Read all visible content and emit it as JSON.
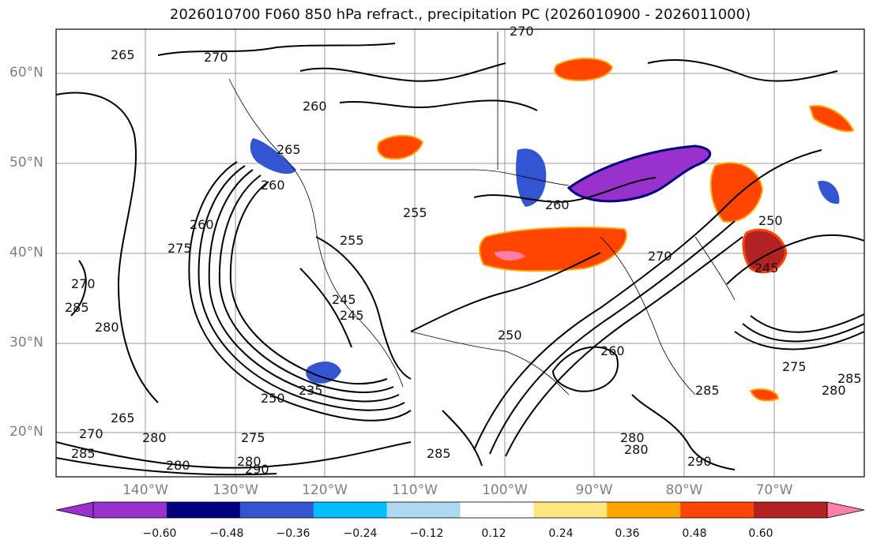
{
  "title": "2026010700 F060 850 hPa refract., precipitation PC (2026010900 - 2026011000)",
  "lat_labels": [
    "60°N",
    "50°N",
    "40°N",
    "30°N",
    "20°N"
  ],
  "lon_labels": [
    "140°W",
    "130°W",
    "120°W",
    "110°W",
    "100°W",
    "90°W",
    "80°W",
    "70°W"
  ],
  "contour_labels": [
    "265",
    "270",
    "270",
    "260",
    "265",
    "260",
    "275",
    "270",
    "285",
    "280",
    "245",
    "245",
    "235",
    "255",
    "260",
    "250",
    "250",
    "265",
    "270",
    "275",
    "280",
    "285",
    "280",
    "280",
    "290",
    "285",
    "255",
    "260",
    "245",
    "250",
    "280",
    "280",
    "285",
    "290",
    "260",
    "270",
    "275",
    "280",
    "285"
  ],
  "colorbar": {
    "ticks": [
      "−0.60",
      "−0.48",
      "−0.36",
      "−0.24",
      "−0.12",
      "0.12",
      "0.24",
      "0.36",
      "0.48",
      "0.60"
    ],
    "colors": [
      "#9932cc",
      "#00007f",
      "#3455d0",
      "#00bfff",
      "#add8f0",
      "#ffffff",
      "#ffe680",
      "#ffa500",
      "#ff4500",
      "#b22222",
      "#ff7fa8",
      "#ff7fa8"
    ]
  }
}
